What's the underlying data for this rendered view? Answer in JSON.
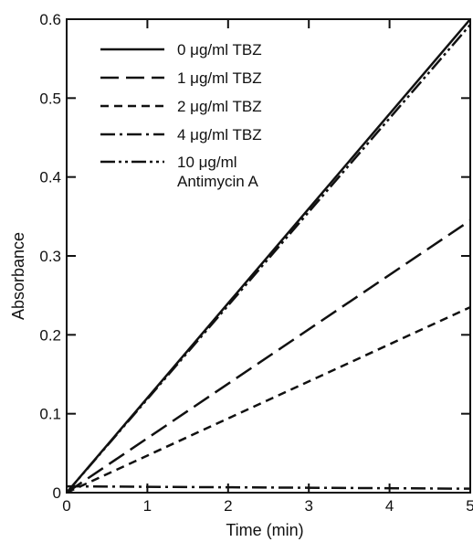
{
  "chart_data": {
    "type": "line",
    "xlabel": "Time (min)",
    "ylabel": "Absorbance",
    "xlim": [
      0,
      5
    ],
    "ylim": [
      0,
      0.6
    ],
    "x_ticks": [
      "0",
      "1",
      "2",
      "3",
      "4",
      "5"
    ],
    "y_ticks": [
      "0",
      "0.1",
      "0.2",
      "0.3",
      "0.4",
      "0.5",
      "0.6"
    ],
    "grid": false,
    "legend_position": "top-left",
    "series": [
      {
        "name": "0 μg/ml TBZ",
        "name_line2": "",
        "x": [
          0,
          5
        ],
        "y": [
          0,
          0.6
        ],
        "dash": "solid"
      },
      {
        "name": "1 μg/ml TBZ",
        "name_line2": "",
        "x": [
          0,
          5
        ],
        "y": [
          0,
          0.345
        ],
        "dash": "long-dash"
      },
      {
        "name": "2 μg/ml TBZ",
        "name_line2": "",
        "x": [
          0,
          5
        ],
        "y": [
          0,
          0.235
        ],
        "dash": "short-dash"
      },
      {
        "name": "4 μg/ml TBZ",
        "name_line2": "",
        "x": [
          0,
          5
        ],
        "y": [
          0.008,
          0.005
        ],
        "dash": "dash-dot"
      },
      {
        "name": "10 μg/ml",
        "name_line2": "Antimycin A",
        "x": [
          0,
          5
        ],
        "y": [
          0,
          0.593
        ],
        "dash": "dash-dot-dot"
      }
    ]
  }
}
